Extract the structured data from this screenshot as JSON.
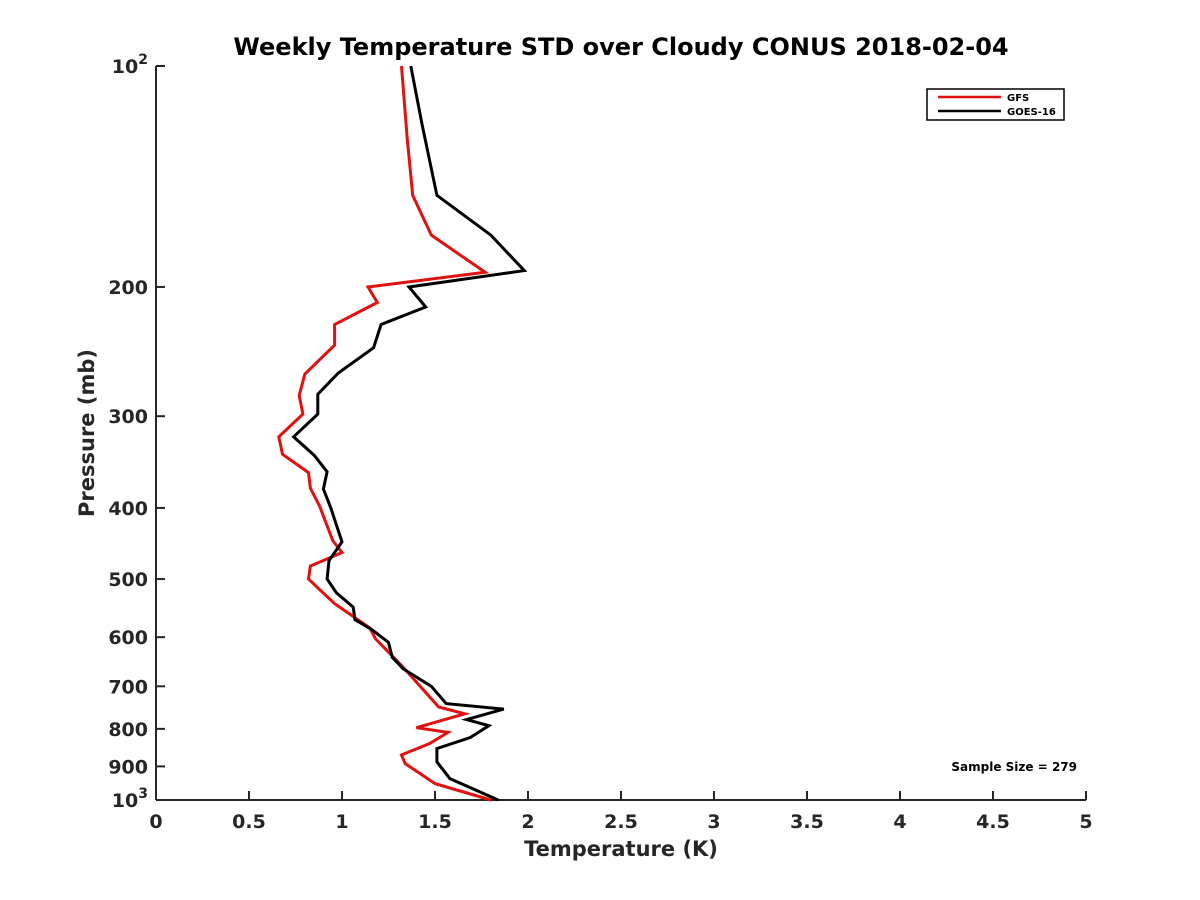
{
  "chart_data": {
    "type": "line",
    "title": "Weekly Temperature STD over Cloudy CONUS 2018-02-04",
    "xlabel": "Temperature (K)",
    "ylabel": "Pressure (mb)",
    "xlim": [
      0,
      5
    ],
    "ylim": [
      100,
      1000
    ],
    "yscale": "log",
    "y_reversed": true,
    "grid": false,
    "legend_position": "top-right",
    "x_ticks": [
      0,
      0.5,
      1,
      1.5,
      2,
      2.5,
      3,
      3.5,
      4,
      4.5,
      5
    ],
    "x_tick_labels": [
      "0",
      "0.5",
      "1",
      "1.5",
      "2",
      "2.5",
      "3",
      "3.5",
      "4",
      "4.5",
      "5"
    ],
    "y_ticks": [
      100,
      200,
      300,
      400,
      500,
      600,
      700,
      800,
      900,
      1000
    ],
    "y_tick_labels": [
      {
        "base": "10",
        "exp": "2"
      },
      {
        "base": "200",
        "exp": ""
      },
      {
        "base": "300",
        "exp": ""
      },
      {
        "base": "400",
        "exp": ""
      },
      {
        "base": "500",
        "exp": ""
      },
      {
        "base": "600",
        "exp": ""
      },
      {
        "base": "700",
        "exp": ""
      },
      {
        "base": "800",
        "exp": ""
      },
      {
        "base": "900",
        "exp": ""
      },
      {
        "base": "10",
        "exp": "3"
      }
    ],
    "series": [
      {
        "name": "GFS",
        "color": "#e0110f",
        "points": [
          [
            1.32,
            100
          ],
          [
            1.35,
            125
          ],
          [
            1.38,
            150
          ],
          [
            1.48,
            170
          ],
          [
            1.77,
            191
          ],
          [
            1.14,
            200
          ],
          [
            1.19,
            210
          ],
          [
            0.96,
            225
          ],
          [
            0.96,
            240
          ],
          [
            0.8,
            263
          ],
          [
            0.77,
            281
          ],
          [
            0.79,
            298
          ],
          [
            0.66,
            320
          ],
          [
            0.68,
            338
          ],
          [
            0.82,
            358
          ],
          [
            0.83,
            376
          ],
          [
            0.88,
            398
          ],
          [
            0.95,
            443
          ],
          [
            1.0,
            460
          ],
          [
            0.83,
            480
          ],
          [
            0.82,
            500
          ],
          [
            0.88,
            517
          ],
          [
            0.96,
            540
          ],
          [
            1.15,
            583
          ],
          [
            1.18,
            603
          ],
          [
            1.33,
            660
          ],
          [
            1.52,
            747
          ],
          [
            1.66,
            763
          ],
          [
            1.4,
            797
          ],
          [
            1.57,
            809
          ],
          [
            1.47,
            838
          ],
          [
            1.32,
            868
          ],
          [
            1.34,
            892
          ],
          [
            1.5,
            950
          ],
          [
            1.8,
            1000
          ]
        ]
      },
      {
        "name": "GOES-16",
        "color": "#000000",
        "points": [
          [
            1.37,
            100
          ],
          [
            1.43,
            120
          ],
          [
            1.51,
            150
          ],
          [
            1.8,
            170
          ],
          [
            1.98,
            190
          ],
          [
            1.36,
            200
          ],
          [
            1.45,
            213
          ],
          [
            1.21,
            225
          ],
          [
            1.17,
            242
          ],
          [
            0.98,
            262
          ],
          [
            0.87,
            280
          ],
          [
            0.87,
            298
          ],
          [
            0.74,
            320
          ],
          [
            0.85,
            339
          ],
          [
            0.92,
            357
          ],
          [
            0.9,
            377
          ],
          [
            0.94,
            400
          ],
          [
            1.0,
            445
          ],
          [
            0.93,
            472
          ],
          [
            0.92,
            500
          ],
          [
            0.97,
            522
          ],
          [
            1.06,
            546
          ],
          [
            1.07,
            568
          ],
          [
            1.16,
            586
          ],
          [
            1.25,
            610
          ],
          [
            1.27,
            639
          ],
          [
            1.33,
            663
          ],
          [
            1.48,
            700
          ],
          [
            1.56,
            739
          ],
          [
            1.87,
            752
          ],
          [
            1.67,
            777
          ],
          [
            1.79,
            792
          ],
          [
            1.69,
            822
          ],
          [
            1.51,
            851
          ],
          [
            1.51,
            887
          ],
          [
            1.58,
            935
          ],
          [
            1.84,
            1000
          ]
        ]
      }
    ],
    "annotations": [
      {
        "text": "Sample Size = 279",
        "position": "bottom-right"
      }
    ]
  }
}
